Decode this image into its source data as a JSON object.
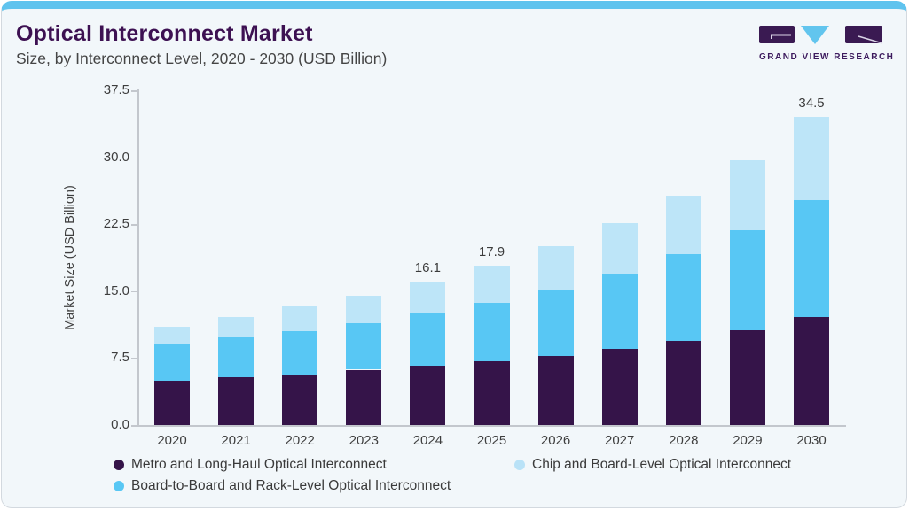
{
  "header": {
    "title": "Optical Interconnect Market",
    "subtitle": "Size, by Interconnect Level, 2020 - 2030 (USD Billion)"
  },
  "logo": {
    "text": "GRAND VIEW RESEARCH",
    "purple": "#3a1a52",
    "blue": "#62c5ee",
    "mark": "#d9d3e6"
  },
  "colors": {
    "card_background": "#f2f7fa",
    "top_strip": "#5fc3ee",
    "axis": "#c3c7cd",
    "title_text": "#3d1152",
    "body_text": "#3e3e3e"
  },
  "chart_data": {
    "type": "bar",
    "stacked": true,
    "title": "Optical Interconnect Market Size, by Interconnect Level, 2020 - 2030 (USD Billion)",
    "ylabel": "Market Size (USD Billion)",
    "xlabel": "",
    "ylim": [
      0,
      37.5
    ],
    "yticks": [
      "0.0",
      "7.5",
      "15.0",
      "22.5",
      "30.0",
      "37.5"
    ],
    "grid": false,
    "legend_position": "bottom",
    "categories": [
      "2020",
      "2021",
      "2022",
      "2023",
      "2024",
      "2025",
      "2026",
      "2027",
      "2028",
      "2029",
      "2030"
    ],
    "series": [
      {
        "name": "Metro and Long-Haul Optical Interconnect",
        "color": "#351449",
        "values": [
          5.0,
          5.4,
          5.7,
          6.2,
          6.6,
          7.1,
          7.7,
          8.5,
          9.4,
          10.6,
          12.1
        ]
      },
      {
        "name": "Board-to-Board and Rack-Level Optical Interconnect",
        "color": "#58c7f4",
        "values": [
          4.0,
          4.4,
          4.8,
          5.2,
          5.9,
          6.6,
          7.5,
          8.5,
          9.7,
          11.2,
          13.1
        ]
      },
      {
        "name": "Chip and Board-Level Optical Interconnect",
        "color": "#bde5f8",
        "values": [
          2.0,
          2.3,
          2.8,
          3.1,
          3.6,
          4.2,
          4.8,
          5.6,
          6.6,
          7.9,
          9.3
        ]
      }
    ],
    "totals": [
      11.0,
      12.1,
      13.3,
      14.5,
      16.1,
      17.9,
      20.0,
      22.6,
      25.7,
      29.7,
      34.5
    ],
    "annotations": [
      {
        "category": "2024",
        "text": "16.1"
      },
      {
        "category": "2025",
        "text": "17.9"
      },
      {
        "category": "2030",
        "text": "34.5"
      }
    ]
  },
  "legend": {
    "items": [
      {
        "label": "Metro and Long-Haul Optical Interconnect",
        "color": "#351449"
      },
      {
        "label": "Chip and Board-Level Optical Interconnect",
        "color": "#b9e2f7"
      },
      {
        "label": "Board-to-Board and Rack-Level Optical Interconnect",
        "color": "#58c7f4"
      }
    ]
  }
}
